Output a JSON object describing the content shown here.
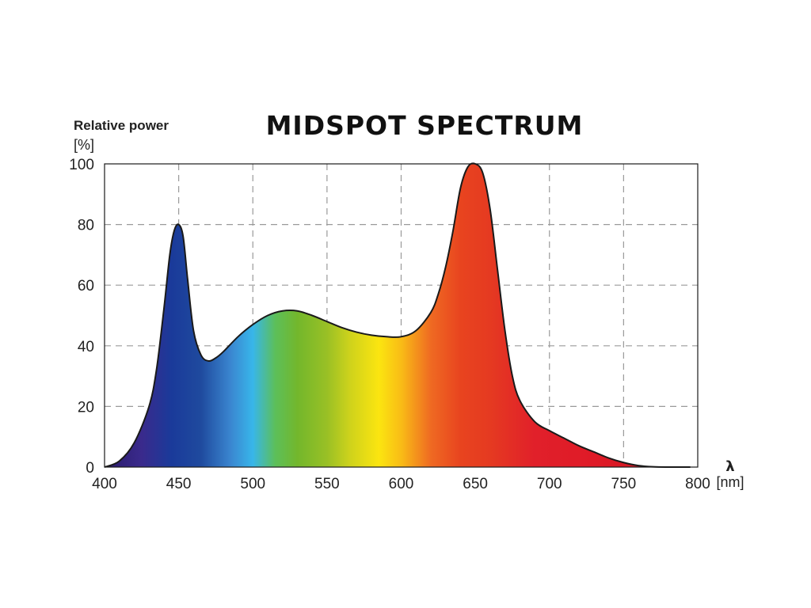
{
  "chart_data": {
    "type": "area",
    "title": "MIDSPOT SPECTRUM",
    "ylabel": "Relative power",
    "yunit": "[%]",
    "xlabel": "λ",
    "xunit": "[nm]",
    "xlim": [
      400,
      800
    ],
    "ylim": [
      0,
      100
    ],
    "xticks": [
      400,
      450,
      500,
      550,
      600,
      650,
      700,
      750,
      800
    ],
    "yticks": [
      0,
      20,
      40,
      60,
      80,
      100
    ],
    "grid": true,
    "series": [
      {
        "x": [
          400,
          410,
          420,
          430,
          435,
          440,
          444,
          447,
          450,
          453,
          456,
          460,
          465,
          470,
          475,
          480,
          490,
          500,
          510,
          520,
          530,
          540,
          550,
          560,
          570,
          580,
          590,
          600,
          610,
          620,
          625,
          630,
          635,
          640,
          645,
          650,
          655,
          660,
          665,
          670,
          675,
          680,
          690,
          700,
          710,
          720,
          730,
          740,
          750,
          760,
          770,
          780,
          790,
          795
        ],
        "y": [
          0,
          2,
          8,
          20,
          32,
          52,
          70,
          78,
          80,
          76,
          62,
          45,
          37,
          35,
          36,
          38,
          43,
          47,
          50,
          51.5,
          51.5,
          50,
          48,
          46,
          44.5,
          43.5,
          43,
          43,
          45,
          51,
          57,
          66,
          78,
          92,
          99,
          100,
          97,
          85,
          65,
          45,
          30,
          22,
          15,
          12,
          9.5,
          7,
          5,
          3,
          1.5,
          0.5,
          0.1,
          0,
          0,
          0
        ]
      }
    ],
    "gradient_stops": [
      {
        "nm": 400,
        "color": "#2a1a6a"
      },
      {
        "nm": 425,
        "color": "#3a2a8c"
      },
      {
        "nm": 445,
        "color": "#1a3a9a"
      },
      {
        "nm": 465,
        "color": "#1f4a9e"
      },
      {
        "nm": 485,
        "color": "#3a86d0"
      },
      {
        "nm": 500,
        "color": "#38b6ea"
      },
      {
        "nm": 515,
        "color": "#5cbf5a"
      },
      {
        "nm": 530,
        "color": "#73b72c"
      },
      {
        "nm": 550,
        "color": "#99c025"
      },
      {
        "nm": 565,
        "color": "#cdd21c"
      },
      {
        "nm": 585,
        "color": "#fbe510"
      },
      {
        "nm": 600,
        "color": "#f9bc16"
      },
      {
        "nm": 620,
        "color": "#ef6a22"
      },
      {
        "nm": 640,
        "color": "#e8441f"
      },
      {
        "nm": 660,
        "color": "#e53a21"
      },
      {
        "nm": 690,
        "color": "#e1202a"
      },
      {
        "nm": 730,
        "color": "#df1a27"
      },
      {
        "nm": 780,
        "color": "#cf1520"
      }
    ]
  }
}
